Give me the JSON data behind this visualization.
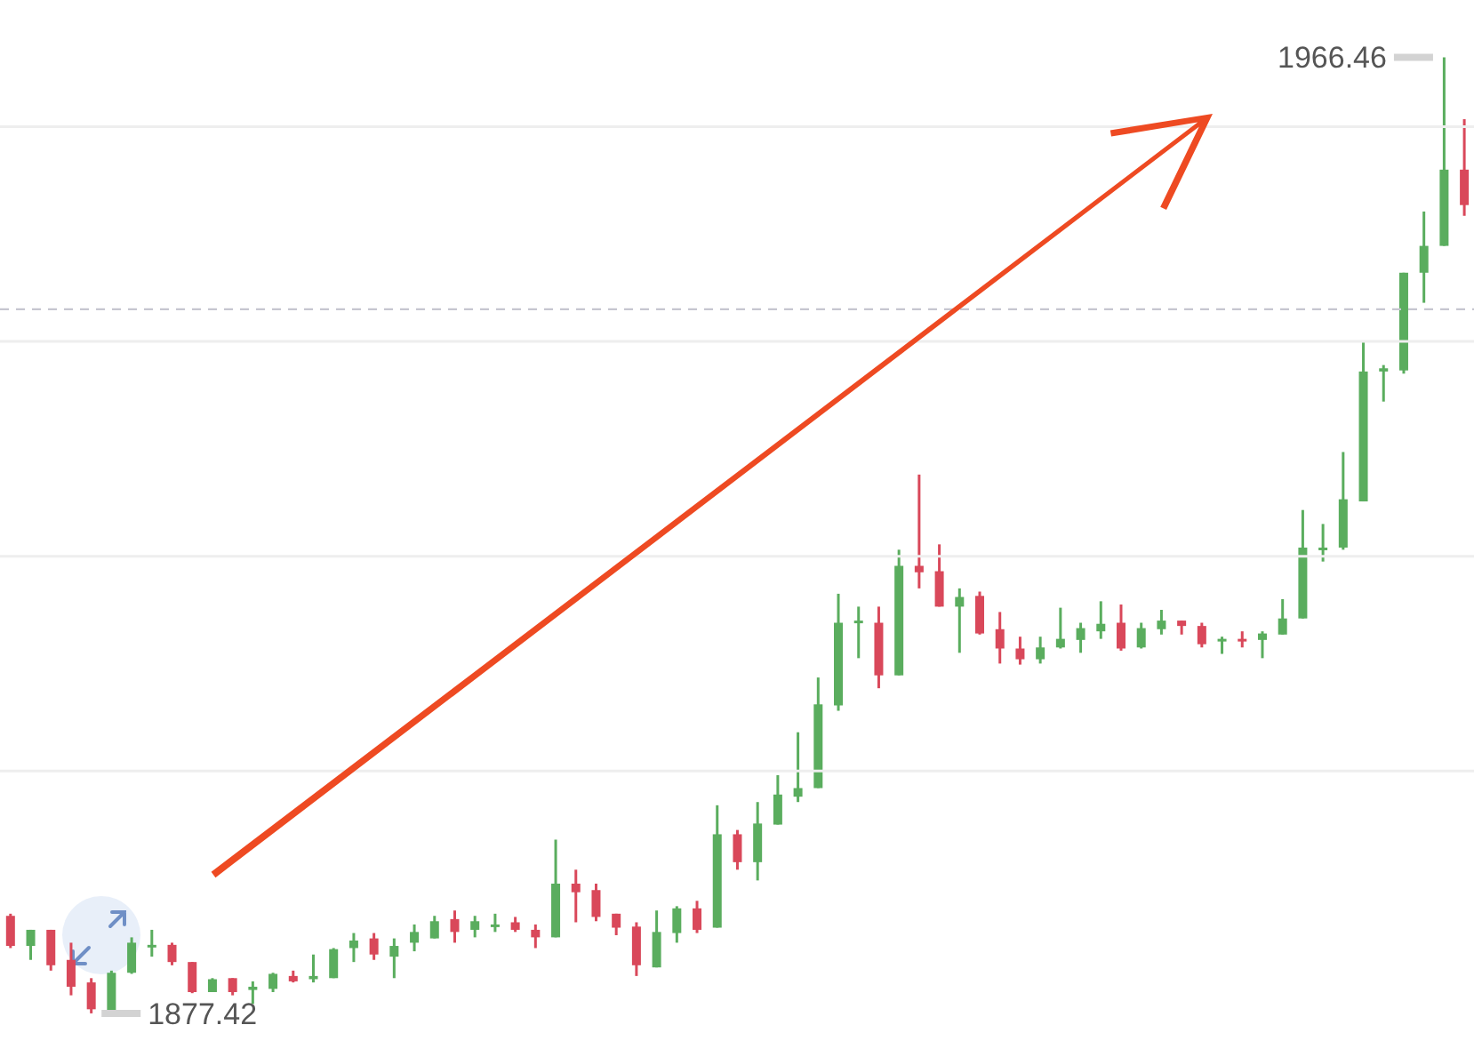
{
  "chart_data": {
    "type": "candlestick",
    "categories": [
      null,
      null,
      null,
      null,
      null,
      null,
      null,
      null,
      null,
      null,
      null,
      null,
      null,
      null,
      null,
      null,
      null,
      null,
      null,
      null,
      null,
      null,
      null,
      null,
      null,
      null,
      null,
      null,
      null,
      null,
      null,
      null,
      null,
      null,
      null,
      null,
      null,
      null,
      null,
      null,
      null,
      null,
      null,
      null,
      null,
      null,
      null,
      null,
      null,
      null,
      null,
      null,
      null,
      null,
      null,
      null,
      null,
      null,
      null,
      null,
      null,
      null,
      null,
      null,
      null,
      null,
      null,
      null,
      null,
      null,
      null,
      null,
      null
    ],
    "ohlc": [
      [
        1886.5,
        1886.7,
        1883.5,
        1883.7
      ],
      [
        1883.7,
        1885.2,
        1882.4,
        1885.2
      ],
      [
        1885.2,
        1885.2,
        1881.4,
        1881.9
      ],
      [
        1882.4,
        1884.0,
        1879.1,
        1879.9
      ],
      [
        1880.3,
        1880.7,
        1877.42,
        1877.8
      ],
      [
        1877.6,
        1881.4,
        1877.6,
        1881.2
      ],
      [
        1881.2,
        1884.5,
        1881.1,
        1884.0
      ],
      [
        1883.7,
        1885.2,
        1882.7,
        1883.8
      ],
      [
        1883.8,
        1884.0,
        1881.9,
        1882.2
      ],
      [
        1882.2,
        1882.2,
        1879.3,
        1879.4
      ],
      [
        1879.4,
        1880.7,
        1879.4,
        1880.6
      ],
      [
        1880.7,
        1880.7,
        1879.1,
        1879.4
      ],
      [
        1879.6,
        1880.4,
        1878.3,
        1879.9
      ],
      [
        1879.7,
        1881.2,
        1879.4,
        1881.1
      ],
      [
        1880.9,
        1881.4,
        1880.3,
        1880.4
      ],
      [
        1880.6,
        1882.9,
        1880.3,
        1880.9
      ],
      [
        1880.7,
        1883.5,
        1880.7,
        1883.4
      ],
      [
        1883.5,
        1884.9,
        1882.2,
        1884.2
      ],
      [
        1884.4,
        1884.9,
        1882.4,
        1882.9
      ],
      [
        1882.7,
        1884.4,
        1880.7,
        1883.7
      ],
      [
        1884.0,
        1885.7,
        1883.2,
        1885.0
      ],
      [
        1884.4,
        1886.5,
        1884.4,
        1886.0
      ],
      [
        1886.2,
        1887.0,
        1884.0,
        1885.0
      ],
      [
        1885.2,
        1886.5,
        1884.5,
        1886.0
      ],
      [
        1885.5,
        1886.7,
        1885.0,
        1885.7
      ],
      [
        1885.9,
        1886.4,
        1885.0,
        1885.2
      ],
      [
        1885.2,
        1885.7,
        1883.5,
        1884.5
      ],
      [
        1884.5,
        1893.6,
        1884.5,
        1889.5
      ],
      [
        1889.5,
        1890.8,
        1885.9,
        1888.7
      ],
      [
        1888.9,
        1889.5,
        1886.0,
        1886.4
      ],
      [
        1886.7,
        1886.7,
        1884.7,
        1885.4
      ],
      [
        1885.5,
        1885.9,
        1880.9,
        1881.9
      ],
      [
        1881.7,
        1887.0,
        1881.7,
        1885.0
      ],
      [
        1884.9,
        1887.4,
        1884.0,
        1887.2
      ],
      [
        1887.2,
        1887.9,
        1884.9,
        1885.2
      ],
      [
        1885.4,
        1896.8,
        1885.4,
        1894.1
      ],
      [
        1894.1,
        1894.5,
        1890.8,
        1891.5
      ],
      [
        1891.5,
        1897.1,
        1889.8,
        1895.1
      ],
      [
        1895.0,
        1899.6,
        1895.0,
        1897.8
      ],
      [
        1897.6,
        1903.6,
        1897.1,
        1898.4
      ],
      [
        1898.4,
        1908.7,
        1898.4,
        1906.2
      ],
      [
        1906.1,
        1916.5,
        1905.6,
        1913.8
      ],
      [
        1913.8,
        1915.3,
        1910.5,
        1914.0
      ],
      [
        1913.8,
        1915.3,
        1907.7,
        1908.9
      ],
      [
        1908.9,
        1920.6,
        1908.9,
        1919.1
      ],
      [
        1919.1,
        1927.6,
        1917.0,
        1918.5
      ],
      [
        1918.6,
        1921.1,
        1915.3,
        1915.3
      ],
      [
        1915.3,
        1917.0,
        1911.0,
        1916.2
      ],
      [
        1916.3,
        1916.7,
        1912.7,
        1912.8
      ],
      [
        1913.2,
        1914.8,
        1910.0,
        1911.4
      ],
      [
        1911.4,
        1912.5,
        1909.9,
        1910.4
      ],
      [
        1910.4,
        1912.5,
        1910.0,
        1911.5
      ],
      [
        1911.5,
        1915.2,
        1911.4,
        1912.3
      ],
      [
        1912.2,
        1913.8,
        1911.0,
        1913.3
      ],
      [
        1913.0,
        1915.8,
        1912.3,
        1913.7
      ],
      [
        1913.8,
        1915.5,
        1911.2,
        1911.4
      ],
      [
        1911.5,
        1913.8,
        1911.4,
        1913.3
      ],
      [
        1913.2,
        1915.0,
        1912.7,
        1914.0
      ],
      [
        1914.0,
        1914.0,
        1912.7,
        1913.5
      ],
      [
        1913.5,
        1913.8,
        1911.5,
        1911.8
      ],
      [
        1912.2,
        1912.5,
        1910.9,
        1912.3
      ],
      [
        1912.3,
        1913.0,
        1911.5,
        1912.2
      ],
      [
        1912.2,
        1913.0,
        1910.5,
        1912.8
      ],
      [
        1912.7,
        1916.0,
        1912.7,
        1914.2
      ],
      [
        1914.2,
        1924.3,
        1914.2,
        1920.8
      ],
      [
        1920.6,
        1923.0,
        1919.5,
        1920.8
      ],
      [
        1920.8,
        1929.7,
        1920.6,
        1925.3
      ],
      [
        1925.1,
        1940.0,
        1925.1,
        1937.2
      ],
      [
        1937.2,
        1937.8,
        1934.4,
        1937.5
      ],
      [
        1937.3,
        1946.4,
        1937.0,
        1946.4
      ],
      [
        1946.4,
        1952.1,
        1943.6,
        1948.9
      ],
      [
        1948.9,
        1966.46,
        1948.9,
        1956.0
      ],
      [
        1956.0,
        1960.7,
        1951.7,
        1952.7
      ]
    ],
    "colors": [
      "#d9485a",
      "#5aad5e",
      "#d9485a",
      "#d9485a",
      "#d9485a",
      "#5aad5e",
      "#5aad5e",
      "#5aad5e",
      "#d9485a",
      "#d9485a",
      "#5aad5e",
      "#d9485a",
      "#5aad5e",
      "#5aad5e",
      "#d9485a",
      "#5aad5e",
      "#5aad5e",
      "#5aad5e",
      "#d9485a",
      "#5aad5e",
      "#5aad5e",
      "#5aad5e",
      "#d9485a",
      "#5aad5e",
      "#5aad5e",
      "#d9485a",
      "#d9485a",
      "#5aad5e",
      "#d9485a",
      "#d9485a",
      "#d9485a",
      "#d9485a",
      "#5aad5e",
      "#5aad5e",
      "#d9485a",
      "#5aad5e",
      "#d9485a",
      "#5aad5e",
      "#5aad5e",
      "#5aad5e",
      "#5aad5e",
      "#5aad5e",
      "#5aad5e",
      "#d9485a",
      "#5aad5e",
      "#d9485a",
      "#d9485a",
      "#5aad5e",
      "#d9485a",
      "#d9485a",
      "#d9485a",
      "#5aad5e",
      "#5aad5e",
      "#5aad5e",
      "#5aad5e",
      "#d9485a",
      "#5aad5e",
      "#5aad5e",
      "#d9485a",
      "#d9485a",
      "#5aad5e",
      "#d9485a",
      "#5aad5e",
      "#5aad5e",
      "#5aad5e",
      "#5aad5e",
      "#5aad5e",
      "#5aad5e",
      "#5aad5e",
      "#5aad5e",
      "#5aad5e",
      "#5aad5e",
      "#d9485a"
    ],
    "ylim": [
      1874.1,
      1971.8
    ],
    "yticks": [
      {
        "value": 1900,
        "label": null
      },
      {
        "value": 1920,
        "label": null
      },
      {
        "value": 1940,
        "label": null
      },
      {
        "value": 1960,
        "label": null
      }
    ],
    "grid": "y",
    "ref_lines": [
      {
        "axis": "y",
        "value": 1943.0,
        "color": "#c6c6d0",
        "line_style": "dashed"
      }
    ],
    "annotations": [
      "1966.46",
      "1877.42"
    ]
  }
}
